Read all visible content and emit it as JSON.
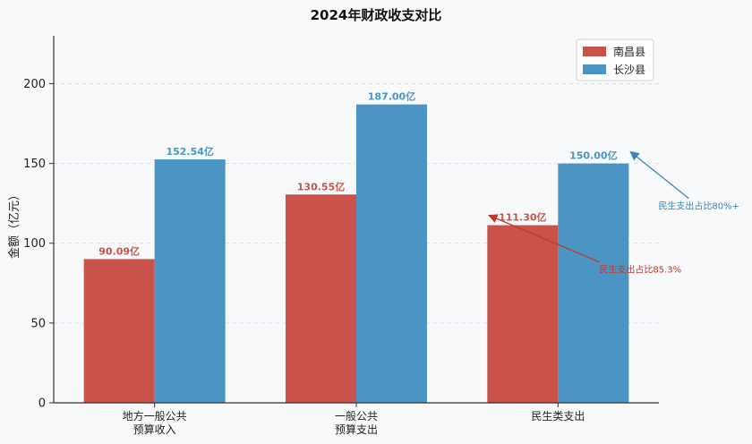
{
  "chart_data": {
    "type": "bar",
    "title": "2024年财政收支对比",
    "ylabel": "金额（亿元）",
    "xlabel": "",
    "ylim": [
      0,
      230
    ],
    "yticks": [
      0,
      50,
      100,
      150,
      200
    ],
    "grid": true,
    "legend_position": "top-right",
    "categories": [
      [
        "地方一般公共",
        "预算收入"
      ],
      [
        "一般公共",
        "预算支出"
      ],
      [
        "民生类支出"
      ]
    ],
    "series": [
      {
        "name": "南昌县",
        "color": "#c9524a",
        "values": [
          90.09,
          130.55,
          111.3
        ],
        "labels": [
          "90.09亿",
          "130.55亿",
          "111.30亿"
        ]
      },
      {
        "name": "长沙县",
        "color": "#4a95c4",
        "values": [
          152.54,
          187.0,
          150.0
        ],
        "labels": [
          "152.54亿",
          "187.00亿",
          "150.00亿"
        ]
      }
    ],
    "annotations": [
      {
        "text": "民生支出占比80%+",
        "series": 1,
        "category": 2,
        "color": "#3a86b4"
      },
      {
        "text": "民生支出占比85.3%",
        "series": 0,
        "category": 2,
        "color": "#c0392b"
      }
    ]
  }
}
